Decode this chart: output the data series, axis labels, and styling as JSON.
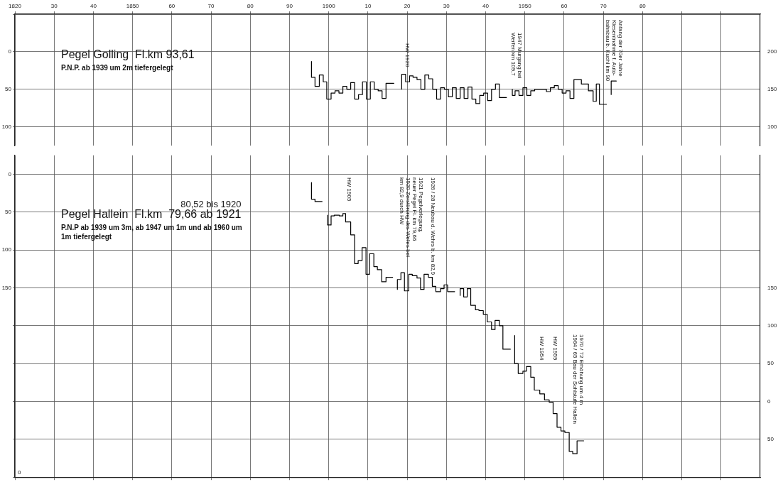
{
  "chart_data": [
    {
      "type": "step",
      "title": "Pegel Golling  Fl.km 93,61",
      "subtitle": "P.N.P. ab 1939 um 2m tiefergelegt",
      "xlim": [
        1820,
        2010
      ],
      "xticks": [
        1820,
        {
          "value": 1830,
          "label": "30"
        },
        {
          "value": 1840,
          "label": "40"
        },
        1850,
        {
          "value": 1860,
          "label": "60"
        },
        {
          "value": 1870,
          "label": "70"
        },
        {
          "value": 1880,
          "label": "80"
        },
        {
          "value": 1890,
          "label": "90"
        },
        1900,
        {
          "value": 1910,
          "label": "10"
        },
        {
          "value": 1920,
          "label": "20"
        },
        {
          "value": 1930,
          "label": "30"
        },
        {
          "value": 1940,
          "label": "40"
        },
        1950,
        {
          "value": 1960,
          "label": "60"
        },
        {
          "value": 1970,
          "label": "70"
        },
        {
          "value": 1980,
          "label": "80"
        },
        {
          "value": 1990,
          "label": null
        },
        {
          "value": 2000,
          "label": null
        }
      ],
      "ylim": [
        125,
        -50
      ],
      "yticks": [
        {
          "value": -50,
          "label": null
        },
        0,
        50,
        100
      ],
      "y2lim": [
        75,
        250
      ],
      "y2ticks": [
        200,
        150,
        100
      ],
      "grid": true,
      "series": [
        {
          "color": "#000000",
          "x": [
            1895.6,
            1896.5,
            1897.6,
            1898.6,
            1899.5,
            1900.6,
            1901.6,
            1902.6,
            1903.6,
            1904.6,
            1905.6,
            1906.6,
            1907.6,
            1908.6,
            1909.6,
            1910.6,
            1911.6,
            1912.6,
            1913.6,
            1914.6,
            1915.6,
            1916.6,
            1917.5,
            1918.6,
            1919.6,
            1920.6,
            1921.5,
            1922.5,
            1923.5,
            1924.5,
            1925.5,
            1926.5,
            1927.5,
            1928.5,
            1929.5,
            1930.5,
            1931.5,
            1932.5,
            1933.5,
            1934.5,
            1935.5,
            1936.5,
            1937.5,
            1938.5,
            1939.5,
            1940.5,
            1941.5,
            1942.5,
            1943.5,
            1944.5,
            1945.3,
            1946,
            1946.8,
            1947.5,
            1948.5,
            1949.5,
            1950.5,
            1951.5,
            1952.5,
            1953.5,
            1954.5,
            1955.5,
            1956.5,
            1957.5,
            1958.5,
            1959.5,
            1960.5,
            1961.5,
            1962.5,
            1964.4,
            1966.2,
            1967.4,
            1968.2,
            1969,
            1969.9,
            1970.8,
            1971.4,
            1972,
            1972.7,
            1973.3
          ],
          "values": [
            13,
            34,
            46,
            31,
            40,
            63,
            55,
            52,
            55,
            46,
            50,
            41,
            63,
            57,
            40,
            63,
            40,
            50,
            52,
            62,
            42,
            42,
            null,
            50,
            30,
            40,
            32,
            34,
            37,
            50,
            31,
            36,
            50,
            63,
            48,
            50,
            60,
            48,
            62,
            48,
            62,
            47,
            63,
            69,
            58,
            55,
            65,
            50,
            43,
            61,
            61,
            null,
            50,
            58,
            52,
            58,
            48,
            58,
            52,
            50,
            50,
            50,
            53,
            48,
            45,
            50,
            55,
            52,
            62,
            37,
            43,
            52,
            66,
            43,
            70,
            70,
            null,
            57,
            39,
            39
          ]
        }
      ],
      "annotations": [
        "HW 1920",
        "1947 Murgang bei\nWerfen km 109,7",
        "Anfang der 70er Jahre\nKiesentnahme f. Auto-\nbahnbau b. Kuchl km 90"
      ]
    },
    {
      "type": "step",
      "title": "Pegel Hallein  Fl.km  79,66 ab 1921",
      "subtitle": "P.N.P ab 1939 um 3m, ab 1947 um 1m und ab 1960 um 1m tiefergelegt",
      "xlim": [
        1820,
        2010
      ],
      "xticks": [
        {
          "value": 1820,
          "label": null
        },
        {
          "value": 1830,
          "label": null
        },
        {
          "value": 1840,
          "label": null
        },
        {
          "value": 1850,
          "label": null
        },
        {
          "value": 1860,
          "label": null
        },
        {
          "value": 1870,
          "label": null
        },
        {
          "value": 1880,
          "label": null
        },
        {
          "value": 1890,
          "label": null
        },
        {
          "value": 1900,
          "label": null
        },
        {
          "value": 1910,
          "label": null
        },
        {
          "value": 1920,
          "label": null
        },
        {
          "value": 1930,
          "label": null
        },
        {
          "value": 1940,
          "label": null
        },
        {
          "value": 1950,
          "label": null
        },
        {
          "value": 1960,
          "label": null
        },
        {
          "value": 1970,
          "label": null
        },
        {
          "value": 1980,
          "label": null
        },
        {
          "value": 1990,
          "label": null
        },
        {
          "value": 2000,
          "label": null
        }
      ],
      "ylim": [
        400,
        -25
      ],
      "yticks": [
        0,
        50,
        100,
        150,
        {
          "value": 200,
          "label": null
        },
        {
          "value": 250,
          "label": null
        },
        {
          "value": 300,
          "label": null
        },
        {
          "value": 350,
          "label": null
        },
        {
          "value": 400,
          "label": null
        }
      ],
      "tick_labels": "y",
      "y2lim": [
        -100,
        325
      ],
      "y2ticks": [
        150,
        100,
        50,
        0,
        {
          "value": -50,
          "label": "50"
        }
      ],
      "grid": true,
      "series": [
        {
          "color": "#000000",
          "x": [
            1895.6,
            1896.5,
            1897.4,
            1898.3,
            1899,
            1899.7,
            1900.6,
            1901.4,
            1902.7,
            1903.6,
            1904.3,
            1905.6,
            1906.6,
            1907.5,
            1908.5,
            1909.5,
            1910.4,
            1911.5,
            1912.4,
            1913.5,
            1914.6,
            1915.5,
            1916.3,
            1917,
            1917.5,
            1918.4,
            1919.3,
            1920.4,
            1921.3,
            1922.5,
            1923.4,
            1924.3,
            1925.4,
            1926.4,
            1927.3,
            1928.5,
            1929.4,
            1930.3,
            1931.4,
            1932.1,
            1932.8,
            1933.5,
            1934.4,
            1935.3,
            1936.2,
            1937.4,
            1938.3,
            1939.4,
            1940.4,
            1941.5,
            1942.4,
            1943.5,
            1944.4,
            1945.5,
            1946.3,
            1946.9,
            1947.4,
            1948.3,
            1949.5,
            1950.4,
            1951.5,
            1952.4,
            1953.8,
            1955,
            1956.2,
            1957.2,
            1958.2,
            1959.2,
            1960.2,
            1961.3,
            1962.2,
            1963.3,
            1964.2,
            1965
          ],
          "values": [
            11,
            33,
            36,
            36,
            null,
            54,
            67,
            55,
            54,
            55,
            52,
            63,
            80,
            118,
            114,
            97,
            132,
            105,
            122,
            126,
            142,
            136,
            136,
            null,
            152,
            139,
            130,
            154,
            132,
            134,
            137,
            152,
            132,
            136,
            148,
            155,
            151,
            146,
            155,
            155,
            null,
            160,
            151,
            162,
            151,
            173,
            179,
            180,
            185,
            195,
            205,
            193,
            200,
            231,
            231,
            null,
            213,
            250,
            263,
            260,
            254,
            268,
            285,
            290,
            298,
            301,
            316,
            334,
            339,
            341,
            366,
            369,
            352,
            352
          ]
        }
      ],
      "annotations": [
        "80,52 bis 1920",
        "HW 1905",
        "1920 Zerstörung des Wehrs bei\nkm 82,9 durch HW",
        "1921 Pegelverlegung,\nneuer Pegel Fl. km 79,66",
        "1926 / 28 Neubau d. Wehrs b. km 82,9",
        "HW 1954",
        "HW 1959",
        "1970 / 72 Erhöhung um 4 m\n1964 / 65 Bau der Sohlstufe Hallein",
        "0"
      ]
    }
  ]
}
